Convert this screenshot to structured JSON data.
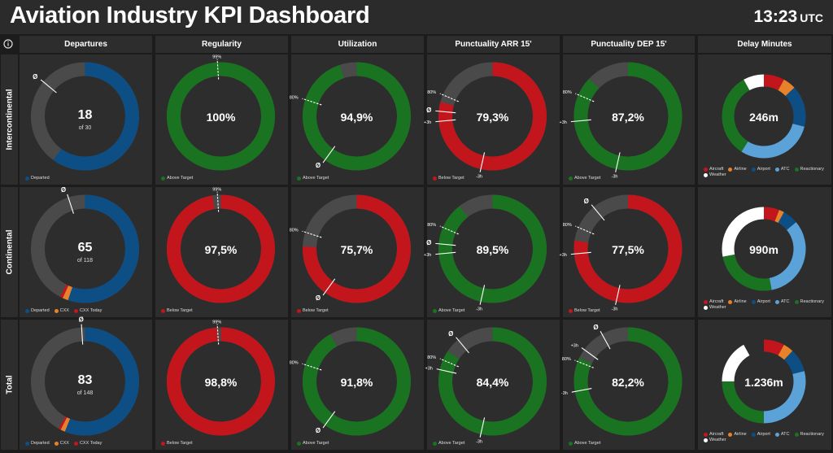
{
  "header": {
    "title": "Aviation Industry KPI Dashboard",
    "time": "13:23",
    "timezone": "UTC"
  },
  "colors": {
    "blue": "#0d4e85",
    "red": "#c3161c",
    "green": "#1a7321",
    "grey": "#4a4a4a",
    "orange": "#e8822a",
    "lightblue": "#5ba2d8",
    "white": "#ffffff",
    "marker": "#ffffff"
  },
  "columns": [
    "Departures",
    "Regularity",
    "Utilization",
    "Punctuality ARR 15'",
    "Punctuality DEP 15'",
    "Delay Minutes"
  ],
  "rows": [
    "Intercontinental",
    "Continental",
    "Total"
  ],
  "cells": [
    [
      {
        "kind": "departures",
        "value": "18",
        "sub": "of 30",
        "departed": 18,
        "cxx": 0,
        "cxx_today": 0,
        "total": 30,
        "avg_pct": 0.86,
        "markers": [
          {
            "text": "Ø",
            "pct": 0.86,
            "style": "solid"
          }
        ],
        "legend": [
          {
            "color": "blue",
            "text": "Departed"
          }
        ]
      },
      {
        "kind": "kpi",
        "value": "100%",
        "pct": 1.0,
        "color": "green",
        "markers": [
          {
            "text": "99%",
            "pct": 0.99,
            "style": "dashed"
          }
        ],
        "legend": [
          {
            "color": "green",
            "text": "Above Target"
          }
        ]
      },
      {
        "kind": "kpi",
        "value": "94,9%",
        "pct": 0.949,
        "color": "green",
        "markers": [
          {
            "text": "80%",
            "pct": 0.8,
            "style": "dashed"
          },
          {
            "text": "Ø",
            "pct": 0.6,
            "style": "solid"
          }
        ],
        "legend": [
          {
            "color": "green",
            "text": "Above Target"
          }
        ]
      },
      {
        "kind": "kpi",
        "value": "79,3%",
        "pct": 0.793,
        "color": "red",
        "markers": [
          {
            "text": "80%",
            "pct": 0.815,
            "style": "dashed"
          },
          {
            "text": "Ø",
            "pct": 0.765,
            "style": "solid"
          },
          {
            "text": "+3h",
            "pct": 0.735,
            "style": "solid"
          },
          {
            "text": "-3h",
            "pct": 0.535,
            "style": "solid"
          }
        ],
        "legend": [
          {
            "color": "red",
            "text": "Below Target"
          }
        ]
      },
      {
        "kind": "kpi",
        "value": "87,2%",
        "pct": 0.872,
        "color": "green",
        "markers": [
          {
            "text": "80%",
            "pct": 0.815,
            "style": "dashed"
          },
          {
            "text": "+3h",
            "pct": 0.735,
            "style": "solid"
          },
          {
            "text": "-3h",
            "pct": 0.535,
            "style": "solid"
          }
        ],
        "legend": [
          {
            "color": "green",
            "text": "Above Target"
          }
        ]
      },
      {
        "kind": "delay",
        "value": "246m",
        "segments": [
          {
            "color": "red",
            "v": 0.08
          },
          {
            "color": "orange",
            "v": 0.05
          },
          {
            "color": "blue",
            "v": 0.16
          },
          {
            "color": "lightblue",
            "v": 0.3
          },
          {
            "color": "green",
            "v": 0.33
          },
          {
            "color": "white",
            "v": 0.08
          }
        ],
        "legend": [
          {
            "color": "red",
            "text": "Aircraft"
          },
          {
            "color": "orange",
            "text": "Airline"
          },
          {
            "color": "blue",
            "text": "Airport"
          },
          {
            "color": "lightblue",
            "text": "ATC"
          },
          {
            "color": "green",
            "text": "Reactionary"
          },
          {
            "color": "white",
            "text": "Weather"
          }
        ]
      }
    ],
    [
      {
        "kind": "departures",
        "value": "65",
        "sub": "of 118",
        "departed": 65,
        "cxx": 2,
        "cxx_today": 1,
        "total": 118,
        "avg_pct": 0.95,
        "markers": [
          {
            "text": "Ø",
            "pct": 0.95,
            "style": "solid"
          }
        ],
        "legend": [
          {
            "color": "blue",
            "text": "Departed"
          },
          {
            "color": "orange",
            "text": "CXX"
          },
          {
            "color": "red",
            "text": "CXX Today"
          }
        ]
      },
      {
        "kind": "kpi",
        "value": "97,5%",
        "pct": 0.975,
        "color": "red",
        "markers": [
          {
            "text": "99%",
            "pct": 0.99,
            "style": "dashed"
          }
        ],
        "legend": [
          {
            "color": "red",
            "text": "Below Target"
          }
        ]
      },
      {
        "kind": "kpi",
        "value": "75,7%",
        "pct": 0.757,
        "color": "red",
        "markers": [
          {
            "text": "80%",
            "pct": 0.8,
            "style": "dashed"
          },
          {
            "text": "Ø",
            "pct": 0.6,
            "style": "solid"
          }
        ],
        "legend": [
          {
            "color": "red",
            "text": "Below Target"
          }
        ]
      },
      {
        "kind": "kpi",
        "value": "89,5%",
        "pct": 0.895,
        "color": "green",
        "markers": [
          {
            "text": "80%",
            "pct": 0.815,
            "style": "dashed"
          },
          {
            "text": "Ø",
            "pct": 0.765,
            "style": "solid"
          },
          {
            "text": "+3h",
            "pct": 0.735,
            "style": "solid"
          },
          {
            "text": "-3h",
            "pct": 0.535,
            "style": "solid"
          }
        ],
        "legend": [
          {
            "color": "green",
            "text": "Above Target"
          }
        ]
      },
      {
        "kind": "kpi",
        "value": "77,5%",
        "pct": 0.775,
        "color": "red",
        "markers": [
          {
            "text": "Ø",
            "pct": 0.89,
            "style": "solid"
          },
          {
            "text": "80%",
            "pct": 0.815,
            "style": "dashed"
          },
          {
            "text": "+3h",
            "pct": 0.735,
            "style": "solid"
          },
          {
            "text": "-3h",
            "pct": 0.535,
            "style": "solid"
          }
        ],
        "legend": [
          {
            "color": "red",
            "text": "Below Target"
          }
        ]
      },
      {
        "kind": "delay",
        "value": "990m",
        "segments": [
          {
            "color": "red",
            "v": 0.06
          },
          {
            "color": "orange",
            "v": 0.02
          },
          {
            "color": "blue",
            "v": 0.06
          },
          {
            "color": "lightblue",
            "v": 0.33
          },
          {
            "color": "green",
            "v": 0.25
          },
          {
            "color": "white",
            "v": 0.28
          }
        ],
        "legend": [
          {
            "color": "red",
            "text": "Aircraft"
          },
          {
            "color": "orange",
            "text": "Airline"
          },
          {
            "color": "blue",
            "text": "Airport"
          },
          {
            "color": "lightblue",
            "text": "ATC"
          },
          {
            "color": "green",
            "text": "Reactionary"
          },
          {
            "color": "white",
            "text": "Weather"
          }
        ]
      }
    ],
    [
      {
        "kind": "departures",
        "value": "83",
        "sub": "of 148",
        "departed": 83,
        "cxx": 2,
        "cxx_today": 1,
        "total": 148,
        "avg_pct": 0.99,
        "markers": [
          {
            "text": "Ø",
            "pct": 0.99,
            "style": "solid"
          }
        ],
        "legend": [
          {
            "color": "blue",
            "text": "Departed"
          },
          {
            "color": "orange",
            "text": "CXX"
          },
          {
            "color": "red",
            "text": "CXX Today"
          }
        ]
      },
      {
        "kind": "kpi",
        "value": "98,8%",
        "pct": 0.988,
        "color": "red",
        "markers": [
          {
            "text": "99%",
            "pct": 0.99,
            "style": "dashed"
          }
        ],
        "legend": [
          {
            "color": "red",
            "text": "Below Target"
          }
        ]
      },
      {
        "kind": "kpi",
        "value": "91,8%",
        "pct": 0.918,
        "color": "green",
        "markers": [
          {
            "text": "80%",
            "pct": 0.8,
            "style": "dashed"
          },
          {
            "text": "Ø",
            "pct": 0.6,
            "style": "solid"
          }
        ],
        "legend": [
          {
            "color": "green",
            "text": "Above Target"
          }
        ]
      },
      {
        "kind": "kpi",
        "value": "84,4%",
        "pct": 0.844,
        "color": "green",
        "markers": [
          {
            "text": "Ø",
            "pct": 0.89,
            "style": "solid"
          },
          {
            "text": "80%",
            "pct": 0.815,
            "style": "dashed"
          },
          {
            "text": "+3h",
            "pct": 0.785,
            "style": "solid"
          },
          {
            "text": "-3h",
            "pct": 0.535,
            "style": "solid"
          }
        ],
        "legend": [
          {
            "color": "green",
            "text": "Above Target"
          }
        ]
      },
      {
        "kind": "kpi",
        "value": "82,2%",
        "pct": 0.822,
        "color": "green",
        "markers": [
          {
            "text": "Ø",
            "pct": 0.92,
            "style": "solid"
          },
          {
            "text": "+3h",
            "pct": 0.85,
            "style": "solid"
          },
          {
            "text": "80%",
            "pct": 0.81,
            "style": "dashed"
          },
          {
            "text": "-3h",
            "pct": 0.72,
            "style": "solid"
          }
        ],
        "legend": [
          {
            "color": "green",
            "text": "Above Target"
          }
        ]
      },
      {
        "kind": "delay",
        "value": "1.236m",
        "segments": [
          {
            "color": "red",
            "v": 0.08
          },
          {
            "color": "orange",
            "v": 0.04
          },
          {
            "color": "blue",
            "v": 0.09
          },
          {
            "color": "lightblue",
            "v": 0.29
          },
          {
            "color": "green",
            "v": 0.25
          },
          {
            "color": "white",
            "v": 0.17
          }
        ],
        "legend": [
          {
            "color": "red",
            "text": "Aircraft"
          },
          {
            "color": "orange",
            "text": "Airline"
          },
          {
            "color": "blue",
            "text": "Airport"
          },
          {
            "color": "lightblue",
            "text": "ATC"
          },
          {
            "color": "green",
            "text": "Reactionary"
          },
          {
            "color": "white",
            "text": "Weather"
          }
        ]
      }
    ]
  ]
}
